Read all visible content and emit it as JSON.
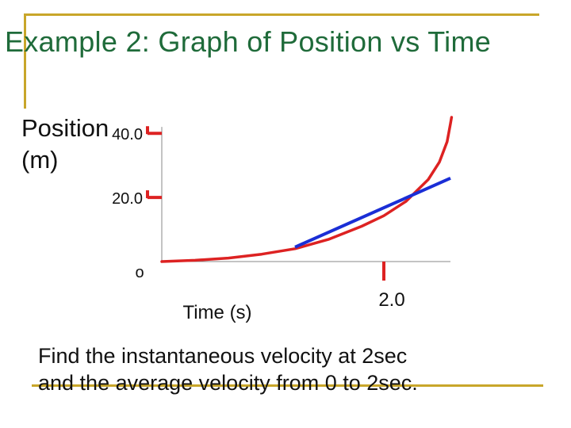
{
  "title": "Example 2: Graph of Position vs Time",
  "footer": {
    "line1": "Find the instantaneous velocity at 2sec",
    "line2": "and the average velocity from 0 to 2sec."
  },
  "colors": {
    "frame": "#c8a62a",
    "title": "#1f6b3a",
    "curve": "#dd2222",
    "tangent": "#1a2ed6",
    "axis": "#888888",
    "tick": "#dd2222"
  },
  "chart_data": {
    "type": "line",
    "title": "",
    "ylabel_lines": [
      "Position",
      "(m)"
    ],
    "xlabel": "Time (s)",
    "xlim": [
      0,
      2.6
    ],
    "ylim": [
      0,
      45
    ],
    "y_ticks": [
      {
        "value": 40.0,
        "label": "40.0"
      },
      {
        "value": 20.0,
        "label": "20.0"
      },
      {
        "value": 0,
        "label": "o"
      }
    ],
    "x_ticks": [
      {
        "value": 2.0,
        "label": "2.0"
      }
    ],
    "series": [
      {
        "kind": "curve",
        "x": [
          0,
          0.3,
          0.6,
          0.9,
          1.2,
          1.5,
          1.8,
          2.0,
          2.2,
          2.4,
          2.5,
          2.57,
          2.6,
          2.61
        ],
        "y": [
          0,
          0.4,
          1.1,
          2.3,
          4.0,
          6.9,
          11.0,
          14.3,
          18.8,
          25.6,
          31.0,
          37.4,
          43.0,
          45
        ]
      },
      {
        "kind": "tangent",
        "x": [
          1.2,
          2.6
        ],
        "y": [
          4.5,
          26.0
        ]
      }
    ],
    "grid": false,
    "legend": "none"
  }
}
